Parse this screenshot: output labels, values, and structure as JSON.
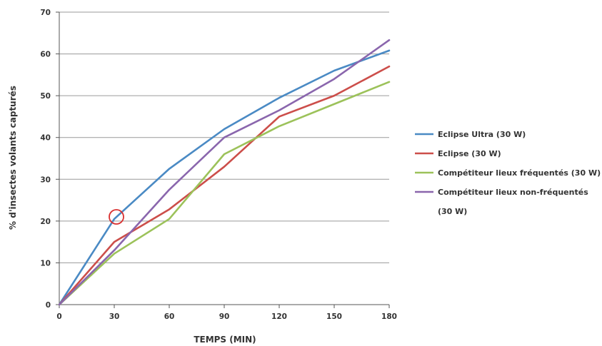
{
  "chart_data": {
    "type": "line",
    "x": [
      0,
      30,
      60,
      90,
      120,
      150,
      180
    ],
    "xlabel": "TEMPS (MIN)",
    "ylabel": "% d'insectes volants capturés",
    "xlim": [
      0,
      180
    ],
    "ylim": [
      0,
      70
    ],
    "x_ticks": [
      "0",
      "30",
      "60",
      "90",
      "120",
      "150",
      "180"
    ],
    "y_ticks": [
      "0",
      "10",
      "20",
      "30",
      "40",
      "50",
      "60",
      "70"
    ],
    "grid": "horizontal",
    "legend_position": "right",
    "series": [
      {
        "name": "Eclipse Ultra (30 W)",
        "color": "#4a8ac4",
        "values": [
          0,
          20.5,
          32.5,
          42,
          49.5,
          56,
          60.8
        ]
      },
      {
        "name": "Eclipse (30 W)",
        "color": "#cc4e4a",
        "values": [
          0,
          15,
          22.8,
          33,
          45,
          50,
          57
        ]
      },
      {
        "name": "Compétiteur lieux fréquentés (30 W)",
        "color": "#9cc25a",
        "values": [
          0,
          12.2,
          20.5,
          36,
          42.7,
          48,
          53.3
        ]
      },
      {
        "name": "Compétiteur lieux non-fréquentés (30 W)",
        "color": "#8a66ad",
        "values": [
          0,
          13,
          27.5,
          40,
          46.5,
          54,
          63.3
        ]
      }
    ],
    "legend": [
      {
        "line1": "Eclipse Ultra (30 W)"
      },
      {
        "line1": "Eclipse (30 W)"
      },
      {
        "line1": "Compétiteur lieux fréquentés (30 W)"
      },
      {
        "line1": "Compétiteur lieux non-fréquentés",
        "line2": "(30 W)"
      }
    ],
    "annotation": {
      "type": "circle",
      "x": 30,
      "y": 21,
      "color": "#d93030"
    }
  }
}
